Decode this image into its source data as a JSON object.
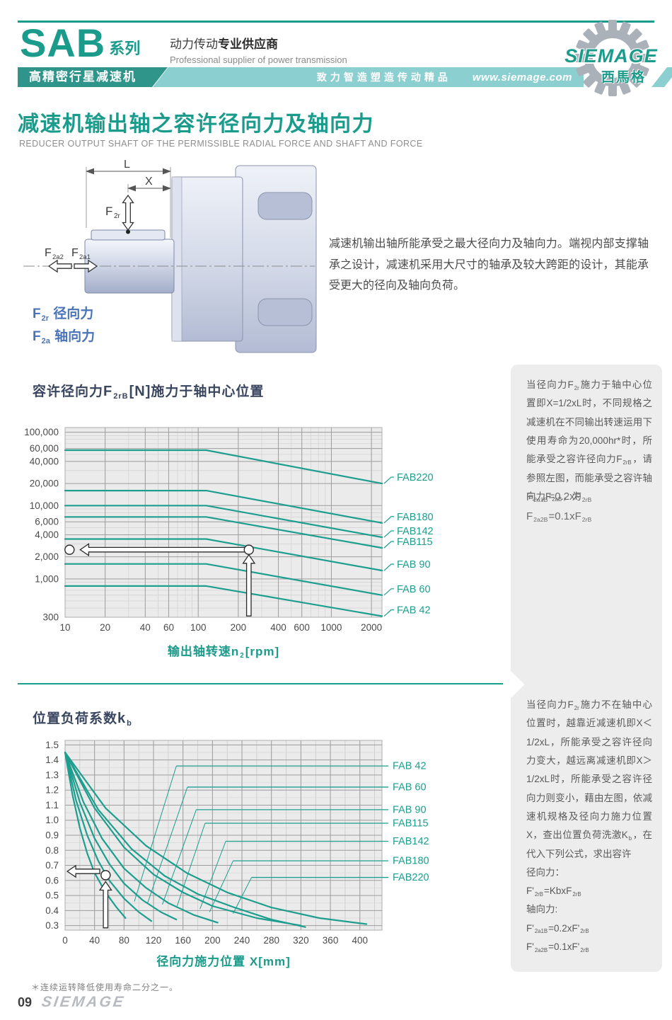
{
  "header": {
    "brand": "SAB",
    "brand_suffix": "系列",
    "tagline_runs": [
      {
        "t": "动力传动"
      },
      {
        "b": "专业供应商"
      }
    ],
    "tagline_en": "Professional supplier of power transmission",
    "band_series": "高精密行星减速机",
    "band_slogan": "致力智造塑造传动精品",
    "band_url": "www.siemage.com",
    "logo_text": "SIEMAGE",
    "logo_sub": "西馬格"
  },
  "section": {
    "title": "减速机输出轴之容许径向力及轴向力",
    "subtitle": "REDUCER OUTPUT SHAFT OF THE PERMISSIBLE RADIAL FORCE AND SHAFT AND FORCE"
  },
  "diagram": {
    "dim_l": "L",
    "dim_x": "X",
    "f2r_main": "F",
    "f2r_sub": "2r",
    "f2a2_main": "F",
    "f2a2_sub": "2a2",
    "f2a1_main": "F",
    "f2a1_sub": "2a1",
    "legend1_runs": [
      {
        "t": "F"
      },
      {
        "s": "2r"
      },
      {
        "t": " 径向力"
      }
    ],
    "legend2_runs": [
      {
        "t": "F"
      },
      {
        "s": "2a"
      },
      {
        "t": " 轴向力"
      }
    ]
  },
  "intro": "减速机输出轴所能承受之最大径向力及轴向力。端视内部支撑轴承之设计，减速机采用大尺寸的轴承及较大跨距的设计，其能承受更大的径向及轴向负荷。",
  "sidebar1": {
    "para_runs": [
      {
        "t": "当径向力F"
      },
      {
        "s": "2r"
      },
      {
        "t": "施力于轴中心位置即X=1/2xL时，不同规格之减速机在不同输出转速运用下使用寿命为20,000hr*时，所能承受之容许径向力F"
      },
      {
        "s": "2rB"
      },
      {
        "t": "，请参照左图，而能承受之容许轴向力F"
      },
      {
        "s": "2aB"
      },
      {
        "t": "，为"
      }
    ],
    "formula1_runs": [
      {
        "t": "F"
      },
      {
        "s": "2a1B"
      },
      {
        "t": "=0.2xF"
      },
      {
        "s": "2rB"
      }
    ],
    "formula2_runs": [
      {
        "t": "F"
      },
      {
        "s": "2a2B"
      },
      {
        "t": "=0.1xF"
      },
      {
        "s": "2rB"
      }
    ]
  },
  "sidebar2": {
    "para_runs": [
      {
        "t": "当径向力F"
      },
      {
        "s": "2r"
      },
      {
        "t": "施力不在轴中心位置时，越靠近减速机即X＜1/2xL，所能承受之容许径向力变大，越远离减速机即X＞1/2xL时，所能承受之容许径向力则变小，藉由左图，依减速机规格及径向力施力位置X，查出位置负荷洗激K"
      },
      {
        "s": "b"
      },
      {
        "t": "，在代入下列公式，求出容许"
      }
    ],
    "lines": [
      [
        {
          "t": "径向力："
        }
      ],
      [
        {
          "t": "F'"
        },
        {
          "s": "2rB"
        },
        {
          "t": "=KbxF"
        },
        {
          "s": "2rB"
        }
      ],
      [
        {
          "t": "轴向力:"
        }
      ],
      [
        {
          "t": "F'"
        },
        {
          "s": "2a1B"
        },
        {
          "t": "=0.2xF'"
        },
        {
          "s": "2rB"
        }
      ],
      [
        {
          "t": "F'"
        },
        {
          "s": "2a2B"
        },
        {
          "t": "=0.1xF'"
        },
        {
          "s": "2rB"
        }
      ]
    ]
  },
  "footnote": "＊连续运转降低使用寿命二分之一。",
  "footer": {
    "page_no": "09",
    "brand": "SIEMAGE"
  },
  "colors": {
    "teal": "#1b9b8b",
    "line": "#1d9e8e",
    "band_dark": "#2f948a",
    "band_light": "#8ccfd1",
    "title_navy": "#3a4660",
    "legend_blue": "#4a74b8"
  },
  "chart_data": [
    {
      "type": "line",
      "title": "容许径向力F2rB[N]施力于轴中心位置",
      "title_runs": [
        {
          "t": "容许径向力"
        },
        {
          "b": "F"
        },
        {
          "s": "2rB"
        },
        {
          "b": "[N]"
        },
        {
          "t": "施力于轴中心位置"
        }
      ],
      "xlabel": "输出轴转速n2[rpm]",
      "xlabel_runs": [
        {
          "t": "输出轴转速"
        },
        {
          "b": "n"
        },
        {
          "s": "2"
        },
        {
          "b": "[rpm]"
        }
      ],
      "x_scale": "log",
      "y_scale": "log",
      "xlim": [
        10,
        2400
      ],
      "ylim": [
        300,
        116000
      ],
      "x_ticks": [
        [
          10,
          "10"
        ],
        [
          20,
          "20"
        ],
        [
          40,
          "40"
        ],
        [
          60,
          "60"
        ],
        [
          100,
          "100"
        ],
        [
          200,
          "200"
        ],
        [
          400,
          "400"
        ],
        [
          600,
          "600"
        ],
        [
          1000,
          "1000"
        ],
        [
          2000,
          "2000"
        ]
      ],
      "y_ticks": [
        [
          100000,
          "100,000"
        ],
        [
          60000,
          "60,000"
        ],
        [
          40000,
          "40,000"
        ],
        [
          20000,
          "20,000"
        ],
        [
          10000,
          "10,000"
        ],
        [
          6000,
          "6,000"
        ],
        [
          4000,
          "4,000"
        ],
        [
          2000,
          "2,000"
        ],
        [
          1000,
          "1,000"
        ],
        [
          300,
          "300"
        ]
      ],
      "grid": true,
      "legend_position": "right",
      "line_color": "#1d9e8e",
      "series": [
        {
          "name": "FAB220",
          "points": [
            [
              10,
              57000
            ],
            [
              115,
              57000
            ],
            [
              2400,
              20000
            ]
          ]
        },
        {
          "name": "FAB180",
          "points": [
            [
              10,
              16000
            ],
            [
              115,
              16000
            ],
            [
              2400,
              5800
            ]
          ]
        },
        {
          "name": "FAB142",
          "points": [
            [
              10,
              10000
            ],
            [
              115,
              10000
            ],
            [
              2400,
              3700
            ]
          ]
        },
        {
          "name": "FAB115",
          "points": [
            [
              10,
              7000
            ],
            [
              115,
              7000
            ],
            [
              2400,
              2650
            ]
          ]
        },
        {
          "name": "FAB 90",
          "points": [
            [
              10,
              3500
            ],
            [
              115,
              3500
            ],
            [
              2400,
              1300
            ]
          ]
        },
        {
          "name": "FAB 60",
          "points": [
            [
              10,
              1600
            ],
            [
              115,
              1600
            ],
            [
              2400,
              600
            ]
          ]
        },
        {
          "name": "FAB 42",
          "points": [
            [
              10,
              800
            ],
            [
              115,
              800
            ],
            [
              2400,
              310
            ]
          ]
        }
      ],
      "annotation": {
        "circles": [
          [
            10.8,
            2500
          ],
          [
            240,
            2500
          ]
        ],
        "h_arrow": [
          [
            228,
            2500
          ],
          [
            13,
            2500
          ]
        ],
        "v_arrow": [
          [
            240,
            312
          ],
          [
            240,
            2130
          ]
        ]
      }
    },
    {
      "type": "line",
      "title": "位置负荷系数kb",
      "title_runs": [
        {
          "t": "位置负荷系数"
        },
        {
          "b": "k"
        },
        {
          "s": "b"
        }
      ],
      "xlabel": "径向力施力位置 X[mm]",
      "x_scale": "linear",
      "y_scale": "linear",
      "xlim": [
        0,
        430
      ],
      "ylim": [
        0.27,
        1.53
      ],
      "x_ticks": [
        [
          0,
          "0"
        ],
        [
          40,
          "40"
        ],
        [
          80,
          "80"
        ],
        [
          120,
          "120"
        ],
        [
          160,
          "160"
        ],
        [
          200,
          "200"
        ],
        [
          240,
          "240"
        ],
        [
          280,
          "280"
        ],
        [
          320,
          "320"
        ],
        [
          360,
          "360"
        ],
        [
          400,
          "400"
        ]
      ],
      "y_ticks": [
        [
          1.5,
          "1.5"
        ],
        [
          1.4,
          "1.4"
        ],
        [
          1.3,
          "1.3"
        ],
        [
          1.2,
          "1.2"
        ],
        [
          1.1,
          "1.1"
        ],
        [
          1.0,
          "1.0"
        ],
        [
          0.9,
          "0.9"
        ],
        [
          0.8,
          "0.8"
        ],
        [
          0.7,
          "0.7"
        ],
        [
          0.6,
          "0.6"
        ],
        [
          0.5,
          "0.5"
        ],
        [
          0.4,
          "0.4"
        ],
        [
          0.3,
          "0.3"
        ]
      ],
      "grid": true,
      "legend_position": "right",
      "line_color": "#1d9e8e",
      "series": [
        {
          "name": "FAB 42",
          "label_kb": 1.36,
          "leader": [
            [
              94,
              0.46
            ],
            [
              151,
              1.36
            ]
          ],
          "points": [
            [
              0,
              1.45
            ],
            [
              10,
              1.17
            ],
            [
              20,
              0.95
            ],
            [
              30,
              0.78
            ],
            [
              40,
              0.65
            ],
            [
              55,
              0.52
            ],
            [
              70,
              0.42
            ],
            [
              82,
              0.35
            ]
          ]
        },
        {
          "name": "FAB 60",
          "label_kb": 1.22,
          "leader": [
            [
              112,
              0.45
            ],
            [
              166,
              1.22
            ]
          ],
          "points": [
            [
              0,
              1.45
            ],
            [
              15,
              1.13
            ],
            [
              30,
              0.9
            ],
            [
              45,
              0.73
            ],
            [
              60,
              0.6
            ],
            [
              80,
              0.48
            ],
            [
              100,
              0.39
            ],
            [
              117,
              0.33
            ]
          ]
        },
        {
          "name": "FAB 90",
          "label_kb": 1.07,
          "leader": [
            [
              132,
              0.44
            ],
            [
              178,
              1.07
            ]
          ],
          "points": [
            [
              0,
              1.45
            ],
            [
              20,
              1.12
            ],
            [
              40,
              0.88
            ],
            [
              60,
              0.71
            ],
            [
              80,
              0.58
            ],
            [
              105,
              0.47
            ],
            [
              130,
              0.39
            ],
            [
              151,
              0.34
            ]
          ]
        },
        {
          "name": "FAB115",
          "label_kb": 0.98,
          "leader": [
            [
              152,
              0.43
            ],
            [
              190,
              0.98
            ]
          ],
          "points": [
            [
              0,
              1.45
            ],
            [
              25,
              1.12
            ],
            [
              50,
              0.88
            ],
            [
              80,
              0.68
            ],
            [
              110,
              0.55
            ],
            [
              140,
              0.45
            ],
            [
              175,
              0.37
            ],
            [
              207,
              0.32
            ]
          ]
        },
        {
          "name": "FAB142",
          "label_kb": 0.86,
          "leader": [
            [
              183,
              0.41
            ],
            [
              218,
              0.86
            ]
          ],
          "points": [
            [
              0,
              1.45
            ],
            [
              40,
              1.08
            ],
            [
              80,
              0.82
            ],
            [
              120,
              0.64
            ],
            [
              160,
              0.52
            ],
            [
              200,
              0.43
            ],
            [
              260,
              0.35
            ],
            [
              320,
              0.3
            ]
          ]
        },
        {
          "name": "FAB180",
          "label_kb": 0.73,
          "leader": [
            [
              196,
              0.39
            ],
            [
              228,
              0.73
            ]
          ],
          "points": [
            [
              0,
              1.45
            ],
            [
              45,
              1.07
            ],
            [
              90,
              0.81
            ],
            [
              135,
              0.63
            ],
            [
              180,
              0.51
            ],
            [
              230,
              0.42
            ],
            [
              280,
              0.34
            ],
            [
              326,
              0.29
            ]
          ]
        },
        {
          "name": "FAB220",
          "label_kb": 0.62,
          "leader": [
            [
              228,
              0.38
            ],
            [
              253,
              0.62
            ]
          ],
          "points": [
            [
              0,
              1.45
            ],
            [
              55,
              1.08
            ],
            [
              110,
              0.83
            ],
            [
              165,
              0.65
            ],
            [
              220,
              0.52
            ],
            [
              280,
              0.42
            ],
            [
              345,
              0.35
            ],
            [
              409,
              0.31
            ]
          ]
        }
      ],
      "annotation": {
        "circles": [
          [
            55,
            0.635
          ]
        ],
        "h_arrow": [
          [
            47,
            0.66
          ],
          [
            3,
            0.66
          ]
        ],
        "v_arrow": [
          [
            55,
            0.285
          ],
          [
            55,
            0.592
          ]
        ]
      }
    }
  ]
}
